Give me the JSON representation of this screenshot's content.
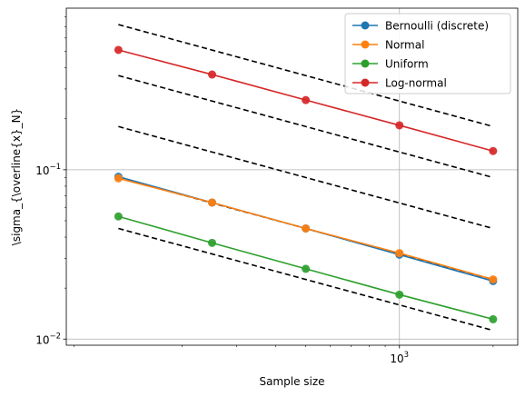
{
  "chart_data": {
    "type": "line",
    "x_scale": "log",
    "y_scale": "log",
    "xlabel": "Sample size",
    "ylabel": "\\sigma_{\\overline{x}_N}",
    "xlim": [
      85,
      2400
    ],
    "ylim": [
      0.0092,
      0.9
    ],
    "x_ticks": [
      {
        "value": 1000,
        "label": "10",
        "exponent": "3"
      }
    ],
    "y_ticks": [
      {
        "value": 0.01,
        "label": "10",
        "exponent": "−2"
      },
      {
        "value": 0.1,
        "label": "10",
        "exponent": "−1"
      }
    ],
    "grid": "major",
    "legend_position": "top-right",
    "series": [
      {
        "name": "Bernoulli (discrete)",
        "color": "#1f77b4",
        "marker": "circle",
        "x": [
          125,
          250,
          500,
          1000,
          2000
        ],
        "y": [
          0.091,
          0.064,
          0.045,
          0.0315,
          0.022
        ]
      },
      {
        "name": "Normal",
        "color": "#ff7f0e",
        "marker": "circle",
        "x": [
          125,
          250,
          500,
          1000,
          2000
        ],
        "y": [
          0.089,
          0.064,
          0.045,
          0.0322,
          0.0225
        ]
      },
      {
        "name": "Uniform",
        "color": "#2ca02c",
        "marker": "circle",
        "x": [
          125,
          250,
          500,
          1000,
          2000
        ],
        "y": [
          0.053,
          0.037,
          0.026,
          0.0183,
          0.0131
        ]
      },
      {
        "name": "Log-normal",
        "color": "#d62728",
        "marker": "circle",
        "x": [
          125,
          250,
          500,
          1000,
          2000
        ],
        "y": [
          0.51,
          0.365,
          0.258,
          0.183,
          0.129
        ]
      }
    ],
    "reference_lines": {
      "color": "#000000",
      "style": "dashed",
      "x": [
        125,
        2000
      ],
      "lines": [
        {
          "y": [
            0.72,
            0.18
          ]
        },
        {
          "y": [
            0.36,
            0.09
          ]
        },
        {
          "y": [
            0.18,
            0.045
          ]
        },
        {
          "y": [
            0.09,
            0.0225
          ]
        },
        {
          "y": [
            0.045,
            0.01125
          ]
        }
      ]
    }
  }
}
